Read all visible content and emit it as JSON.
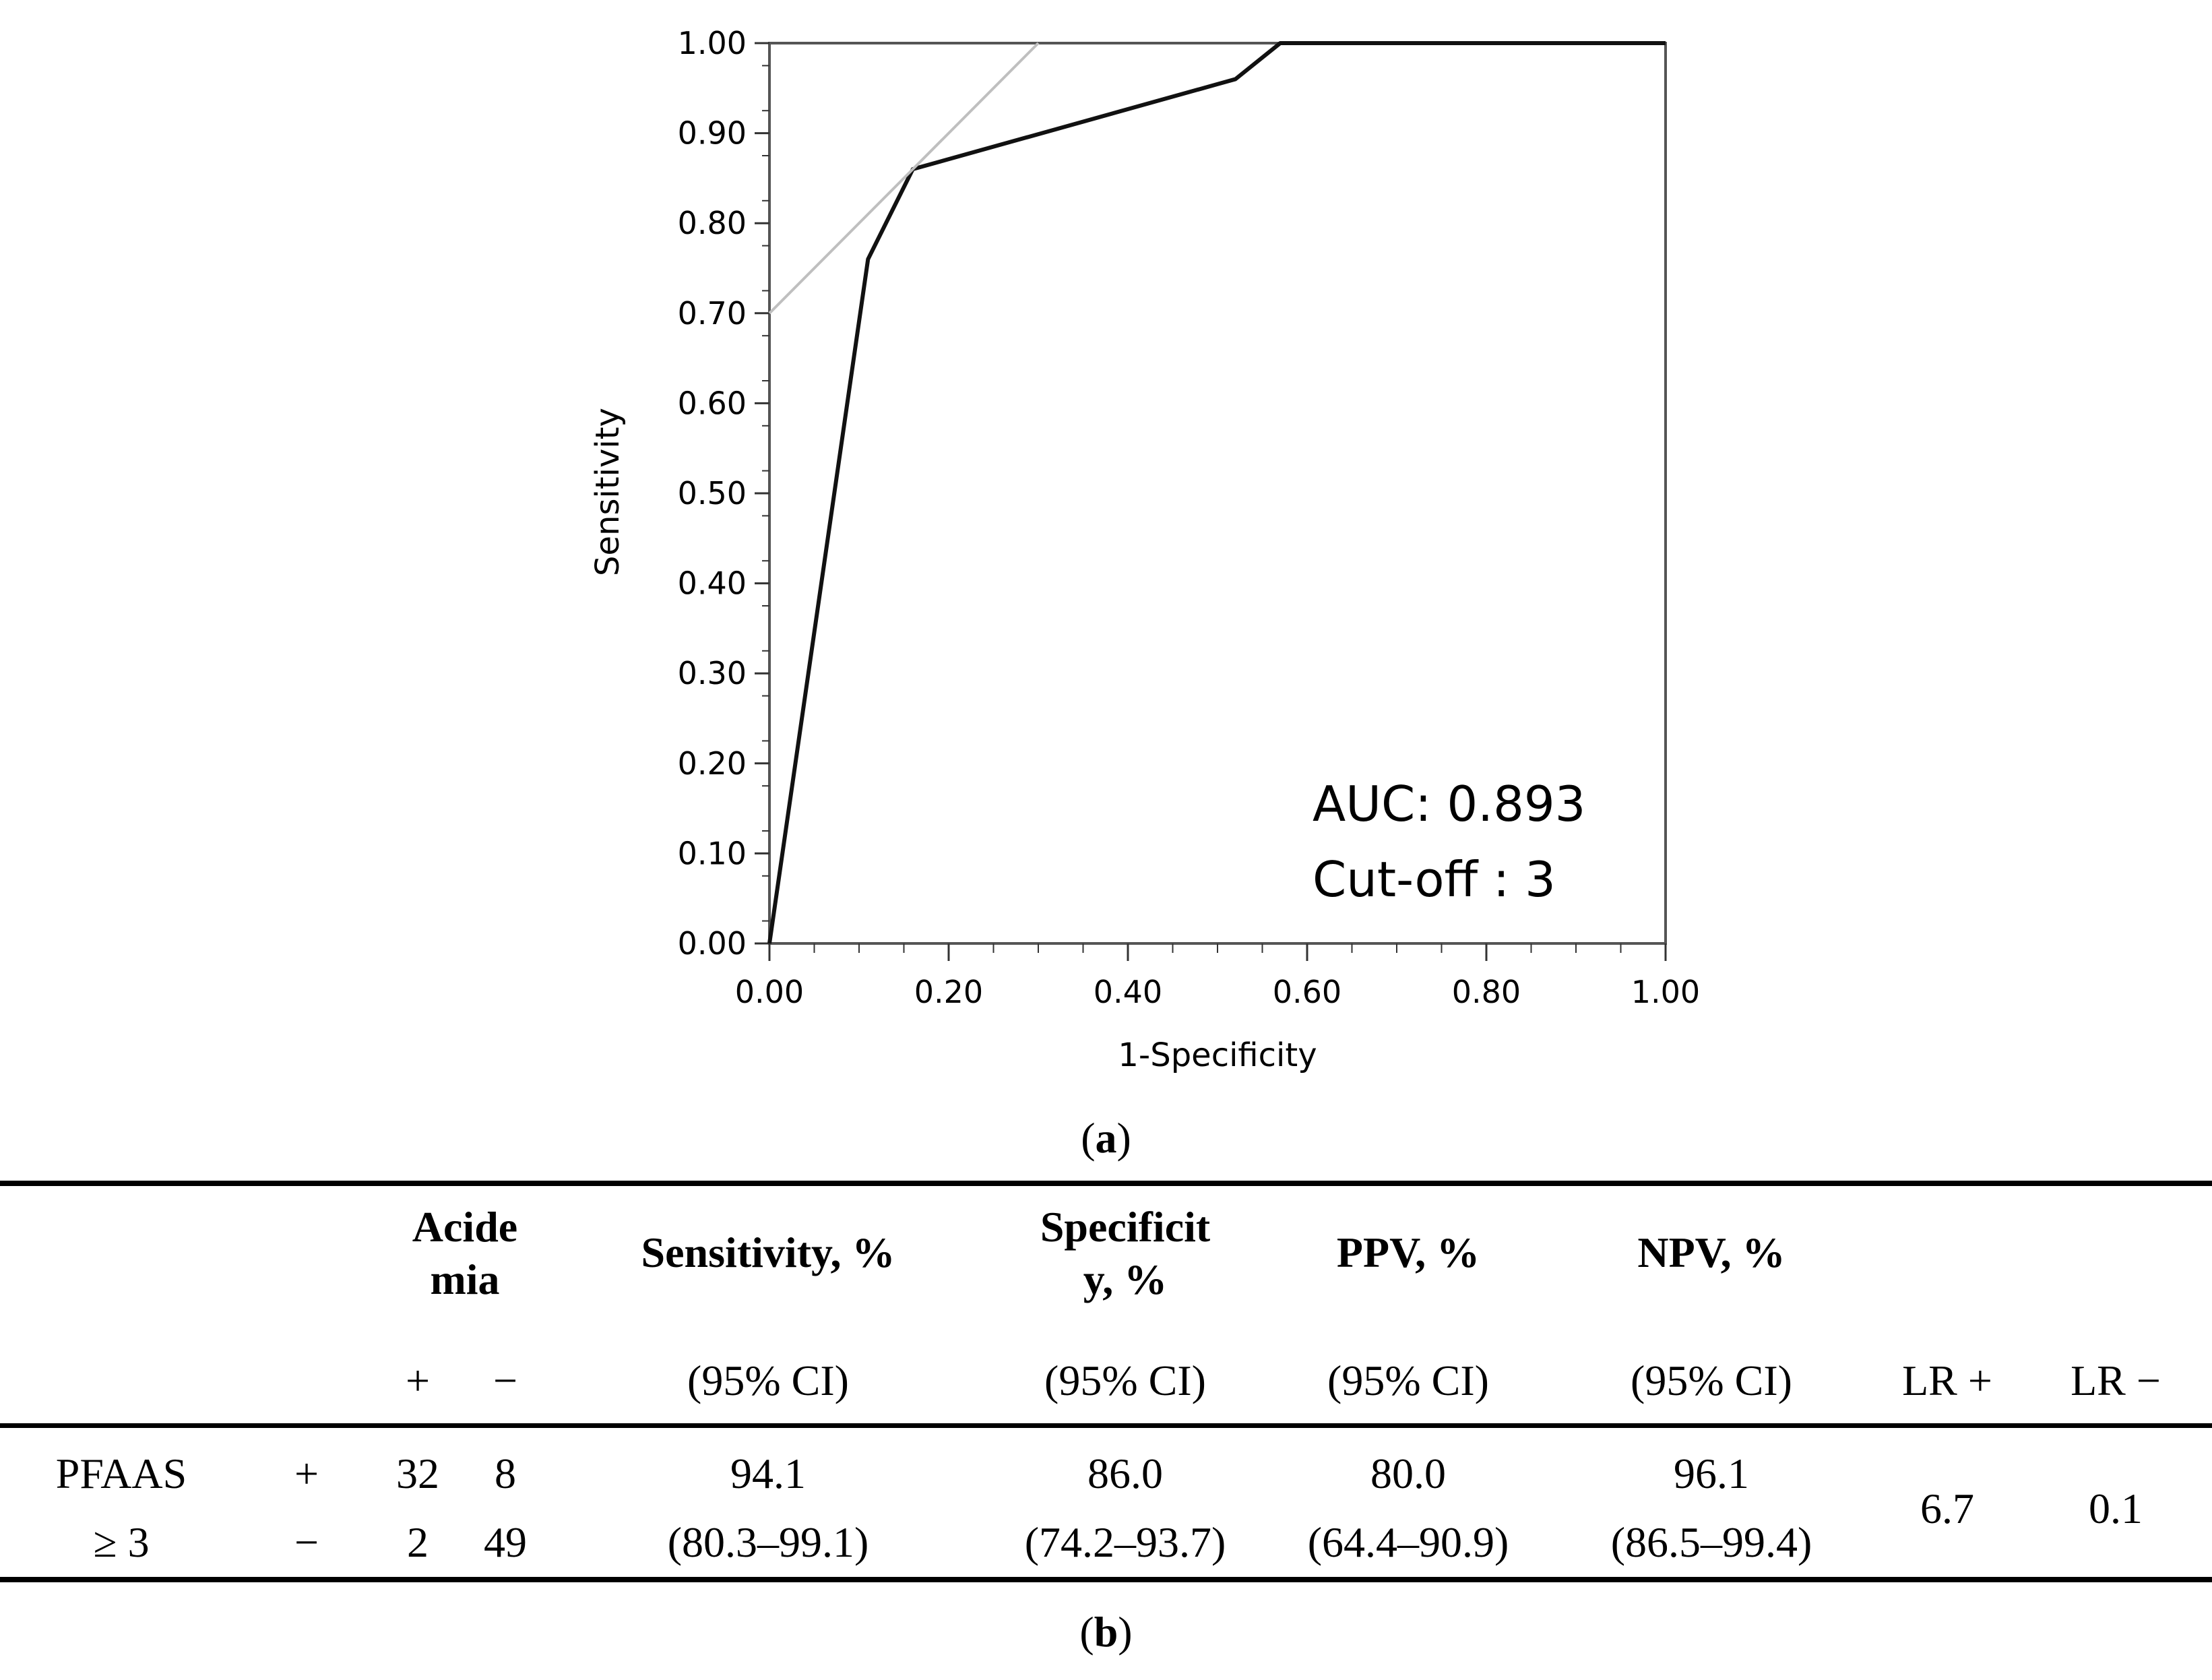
{
  "chart_data": {
    "type": "line",
    "title": "",
    "xlabel": "1-Specificity",
    "ylabel": "Sensitivity",
    "xlim": [
      0,
      1
    ],
    "ylim": [
      0,
      1
    ],
    "x_ticks": [
      "0.00",
      "0.20",
      "0.40",
      "0.60",
      "0.80",
      "1.00"
    ],
    "y_ticks": [
      "0.00",
      "0.10",
      "0.20",
      "0.30",
      "0.40",
      "0.50",
      "0.60",
      "0.70",
      "0.80",
      "0.90",
      "1.00"
    ],
    "series": [
      {
        "name": "ROC curve",
        "color": "#111111",
        "x": [
          0.0,
          0.11,
          0.16,
          0.52,
          0.57,
          1.0
        ],
        "y": [
          0.0,
          0.76,
          0.86,
          0.96,
          1.0,
          1.0
        ]
      },
      {
        "name": "Tangent line",
        "color": "#bfbfbf",
        "x": [
          0.0,
          0.3
        ],
        "y": [
          0.7,
          1.0
        ]
      }
    ],
    "annotations": [
      "AUC: 0.893",
      "Cut-off : 3"
    ],
    "grid": false
  },
  "captions": {
    "a": "a",
    "b": "b"
  },
  "table": {
    "headers": {
      "acidemia_line1": "Acide",
      "acidemia_line2": "mia",
      "acidemia_pos": "+",
      "acidemia_neg": "−",
      "sensitivity": "Sensitivity, %",
      "specificity_line1": "Specificit",
      "specificity_line2": "y, %",
      "ppv": "PPV, %",
      "npv": "NPV, %",
      "ci": "(95% CI)",
      "lr_pos": "LR +",
      "lr_neg": "LR −"
    },
    "row_label_line1": "PFAAS",
    "row_label_line2": "≥ 3",
    "rows": [
      {
        "sign": "+",
        "acidemia_pos": "32",
        "acidemia_neg": "8"
      },
      {
        "sign": "−",
        "acidemia_pos": "2",
        "acidemia_neg": "49"
      }
    ],
    "sensitivity": {
      "value": "94.1",
      "ci": "(80.3–99.1)"
    },
    "specificity": {
      "value": "86.0",
      "ci": "(74.2–93.7)"
    },
    "ppv": {
      "value": "80.0",
      "ci": "(64.4–90.9)"
    },
    "npv": {
      "value": "96.1",
      "ci": "(86.5–99.4)"
    },
    "lr_pos": "6.7",
    "lr_neg": "0.1"
  }
}
